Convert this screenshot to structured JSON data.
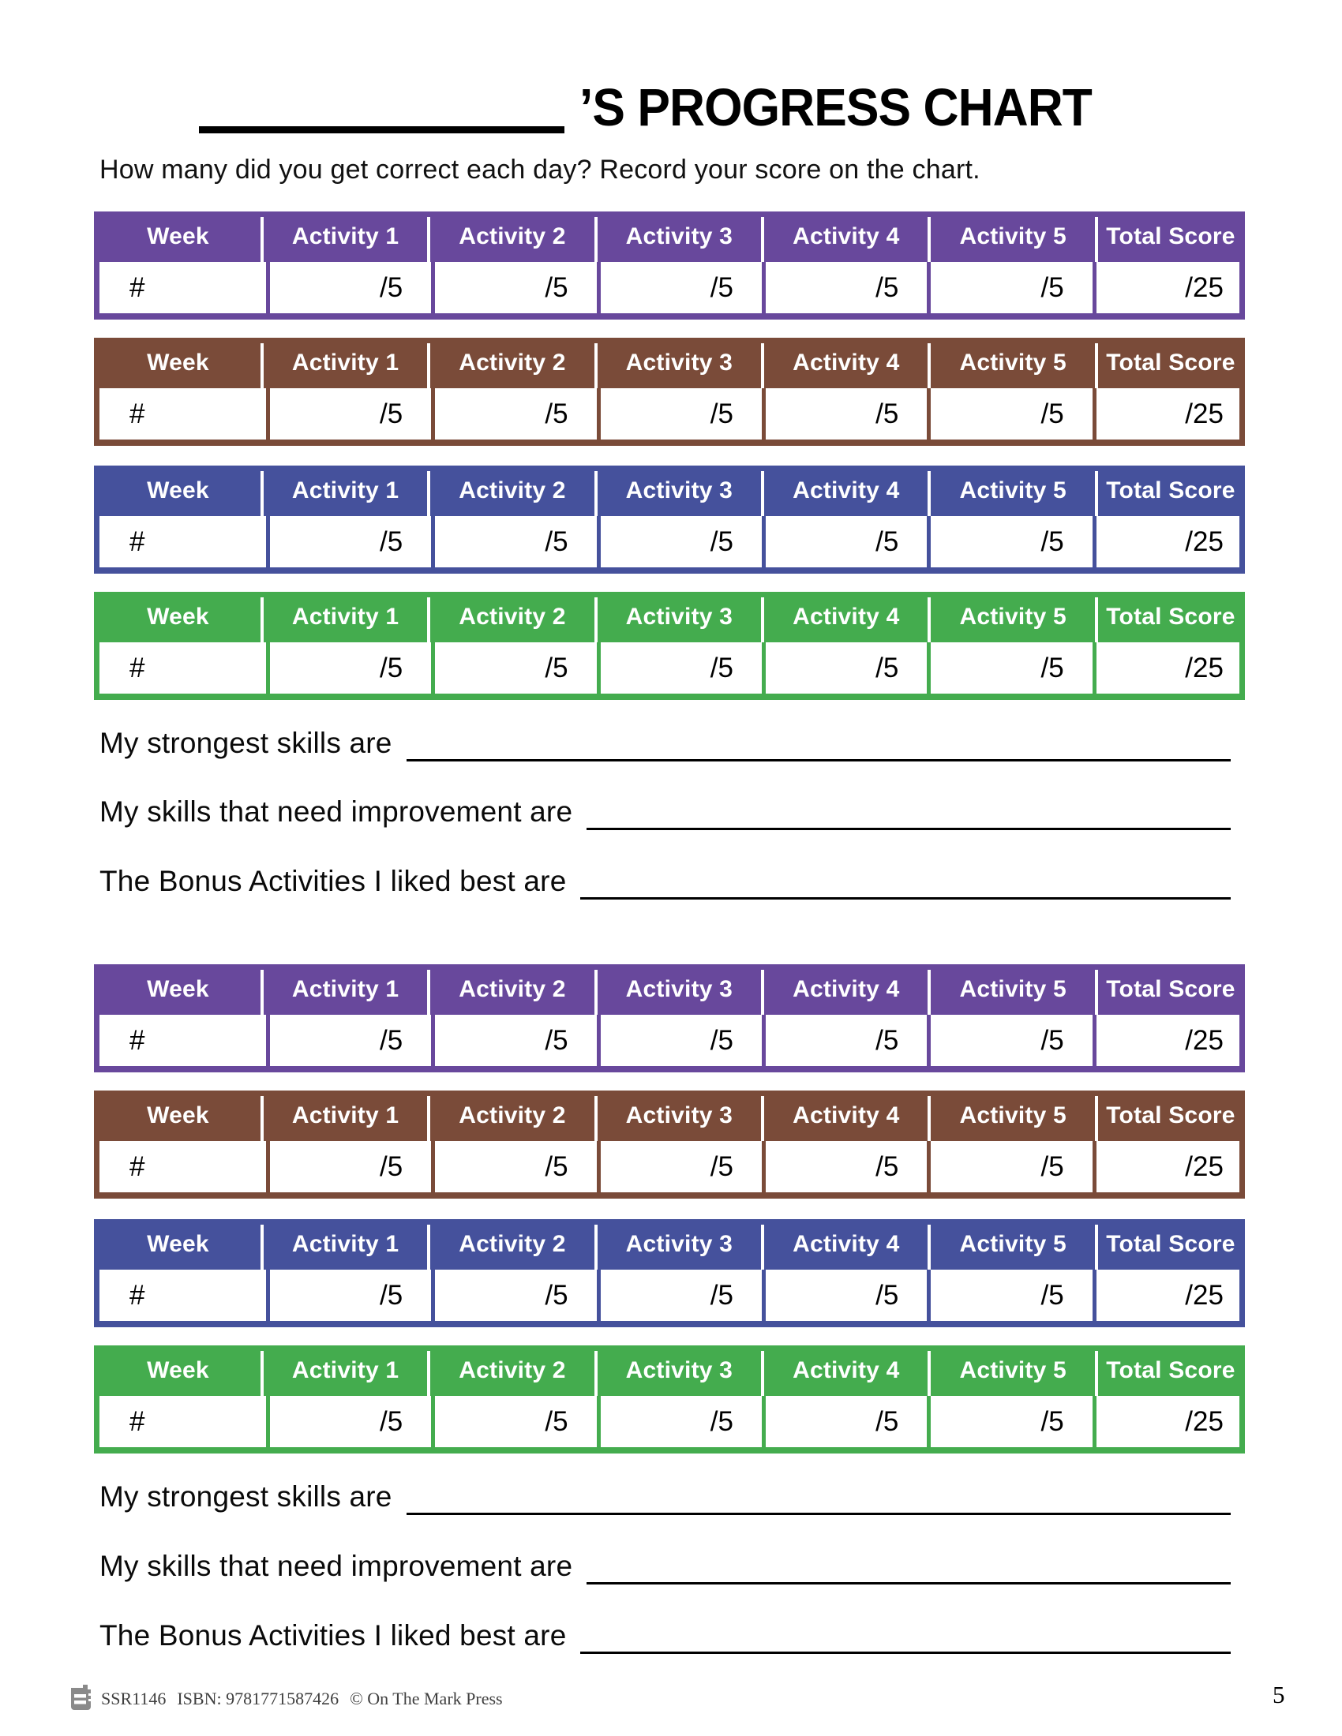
{
  "header": {
    "title": "’S PROGRESS CHART",
    "instructions": "How many did you get correct each day? Record your score on the chart."
  },
  "table": {
    "headers": [
      "Week",
      "Activity 1",
      "Activity 2",
      "Activity 3",
      "Activity 4",
      "Activity 5",
      "Total Score"
    ],
    "row": [
      "#",
      "/5",
      "/5",
      "/5",
      "/5",
      "/5",
      "/25"
    ]
  },
  "colors": {
    "purple": "#68489C",
    "brown": "#7A4B39",
    "blue": "#45519C",
    "green": "#44AC4E"
  },
  "table_sequence": [
    "purple",
    "brown",
    "blue",
    "green",
    "purple",
    "brown",
    "blue",
    "green"
  ],
  "prompts": [
    "My strongest skills are",
    "My skills that need improvement are",
    "The Bonus Activities I liked best are"
  ],
  "footer": {
    "code": "SSR1146",
    "isbn": "ISBN: 9781771587426",
    "copyright": "© On The Mark Press",
    "page_number": "5"
  }
}
